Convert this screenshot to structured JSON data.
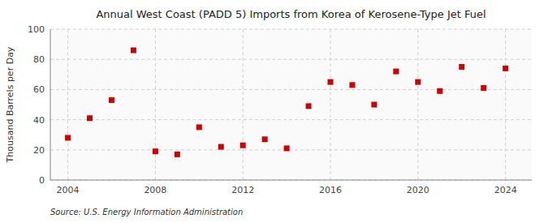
{
  "chart_data": {
    "type": "scatter",
    "title": "Annual West Coast (PADD 5) Imports from Korea of Kerosene-Type Jet Fuel",
    "ylabel": "Thousand Barrels per Day",
    "annotations": [
      "Source: U.S. Energy Information Administration"
    ],
    "x": [
      2004,
      2005,
      2006,
      2007,
      2008,
      2009,
      2010,
      2011,
      2012,
      2013,
      2014,
      2015,
      2016,
      2017,
      2018,
      2019,
      2020,
      2021,
      2022,
      2023,
      2024
    ],
    "values": [
      28,
      41,
      53,
      86,
      19,
      17,
      35,
      22,
      23,
      27,
      21,
      49,
      65,
      63,
      50,
      72,
      65,
      59,
      75,
      61,
      74
    ],
    "color": "#cc0000",
    "marker": "square",
    "xlim": [
      2003.2,
      2025.2
    ],
    "ylim": [
      0,
      100
    ],
    "xticks": [
      2004,
      2008,
      2012,
      2016,
      2020,
      2024
    ],
    "yticks": [
      0,
      20,
      40,
      60,
      80,
      100
    ],
    "grid": true
  }
}
